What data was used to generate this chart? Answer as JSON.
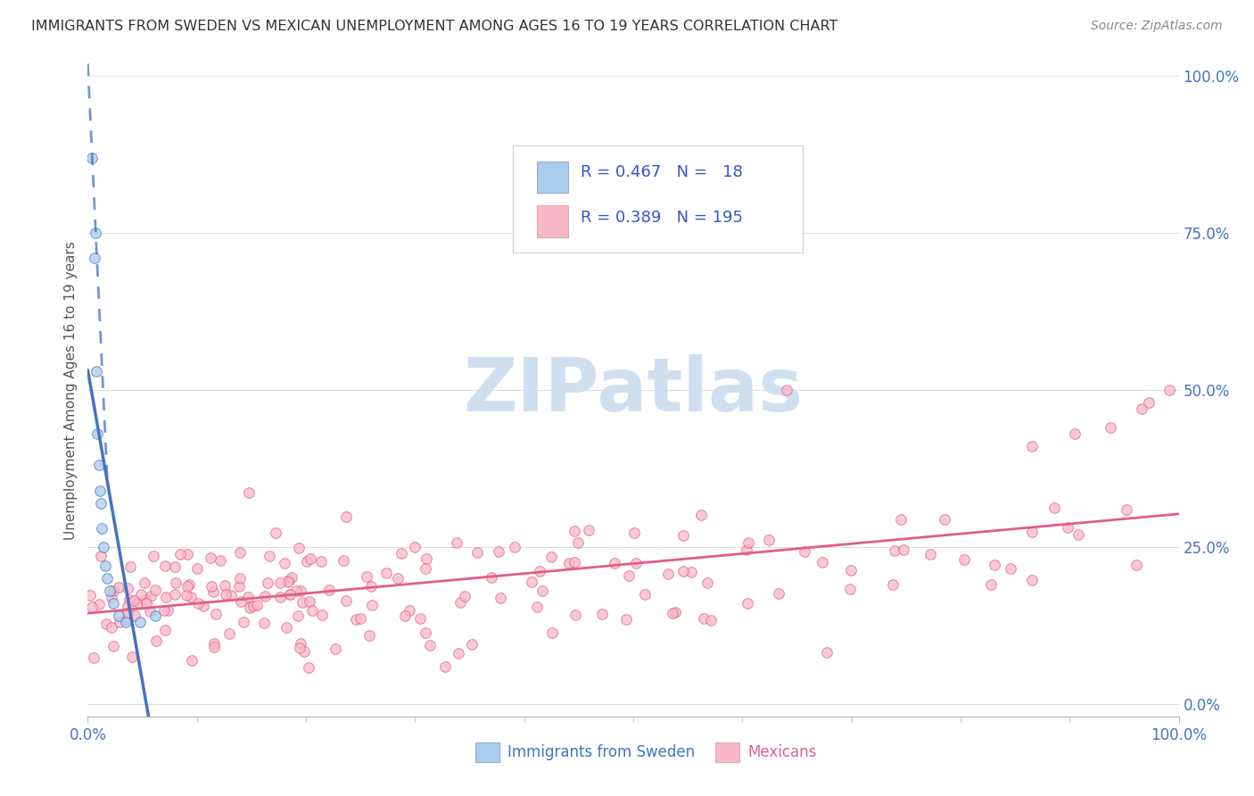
{
  "title": "IMMIGRANTS FROM SWEDEN VS MEXICAN UNEMPLOYMENT AMONG AGES 16 TO 19 YEARS CORRELATION CHART",
  "source": "Source: ZipAtlas.com",
  "ylabel": "Unemployment Among Ages 16 to 19 years",
  "xmin": 0.0,
  "xmax": 1.0,
  "ymin": 0.0,
  "ymax": 1.0,
  "yticks_right": [
    0.0,
    0.25,
    0.5,
    0.75,
    1.0
  ],
  "ytick_labels_right": [
    "0.0%",
    "25.0%",
    "50.0%",
    "75.0%",
    "100.0%"
  ],
  "sweden_R": 0.467,
  "sweden_N": 18,
  "mexico_R": 0.389,
  "mexico_N": 195,
  "sweden_fill_color": "#aaccee",
  "sweden_edge_color": "#4472c4",
  "mexico_fill_color": "#f9b8c8",
  "mexico_edge_color": "#e06080",
  "legend_text_color": "#3355cc",
  "legend_label_color": "#222222",
  "right_axis_color": "#4472c4",
  "watermark_color": "#d0dff0",
  "background_color": "#ffffff",
  "grid_color": "#dddddd",
  "title_color": "#333333",
  "source_color": "#888888",
  "sweden_line_color": "#4472c4",
  "mexico_line_color": "#e06080",
  "xtick_color": "#4472c4"
}
